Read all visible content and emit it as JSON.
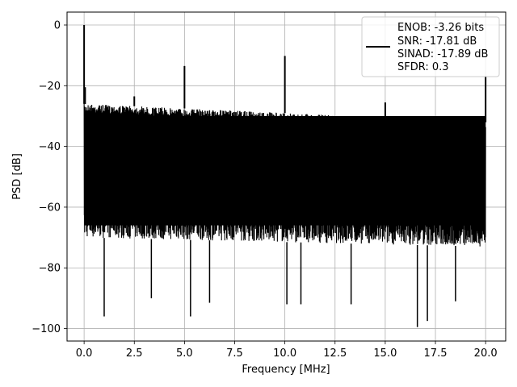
{
  "chart_data": {
    "type": "line",
    "title": "",
    "xlabel": "Frequency [MHz]",
    "ylabel": "PSD [dB]",
    "xlim": [
      -0.85,
      21.0
    ],
    "ylim": [
      -104.1,
      4.25
    ],
    "xticks": [
      0.0,
      2.5,
      5.0,
      7.5,
      10.0,
      12.5,
      15.0,
      17.5,
      20.0
    ],
    "xtick_labels": [
      "0.0",
      "2.5",
      "5.0",
      "7.5",
      "10.0",
      "12.5",
      "15.0",
      "17.5",
      "20.0"
    ],
    "yticks": [
      0,
      -20,
      -40,
      -60,
      -80,
      -100
    ],
    "ytick_labels": [
      "0",
      "−20",
      "−40",
      "−60",
      "−80",
      "−100"
    ],
    "grid": true,
    "legend_position": "top-right",
    "series": [
      {
        "name": "",
        "color": "#000000",
        "noise_floor_top_db": [
          -26,
          -32
        ],
        "noise_floor_bottom_db": [
          -70,
          -73
        ],
        "peaks": [
          {
            "x": 0.0,
            "y": 0.0
          },
          {
            "x": 0.05,
            "y": -20.5
          },
          {
            "x": 2.5,
            "y": -23.5
          },
          {
            "x": 5.0,
            "y": -13.5
          },
          {
            "x": 10.0,
            "y": -10.2
          },
          {
            "x": 15.0,
            "y": -25.5
          },
          {
            "x": 20.0,
            "y": -17.0
          }
        ],
        "dips": [
          {
            "x": 1.0,
            "y": -96.0
          },
          {
            "x": 3.35,
            "y": -90.0
          },
          {
            "x": 5.3,
            "y": -96.0
          },
          {
            "x": 6.25,
            "y": -91.5
          },
          {
            "x": 10.1,
            "y": -92.0
          },
          {
            "x": 10.8,
            "y": -92.0
          },
          {
            "x": 13.3,
            "y": -92.0
          },
          {
            "x": 16.6,
            "y": -99.5
          },
          {
            "x": 17.1,
            "y": -97.5
          },
          {
            "x": 18.5,
            "y": -91.0
          }
        ]
      }
    ],
    "legend_lines": [
      "ENOB: -3.26 bits",
      "SNR: -17.81 dB",
      "SINAD: -17.89 dB",
      "SFDR: 0.3"
    ]
  }
}
